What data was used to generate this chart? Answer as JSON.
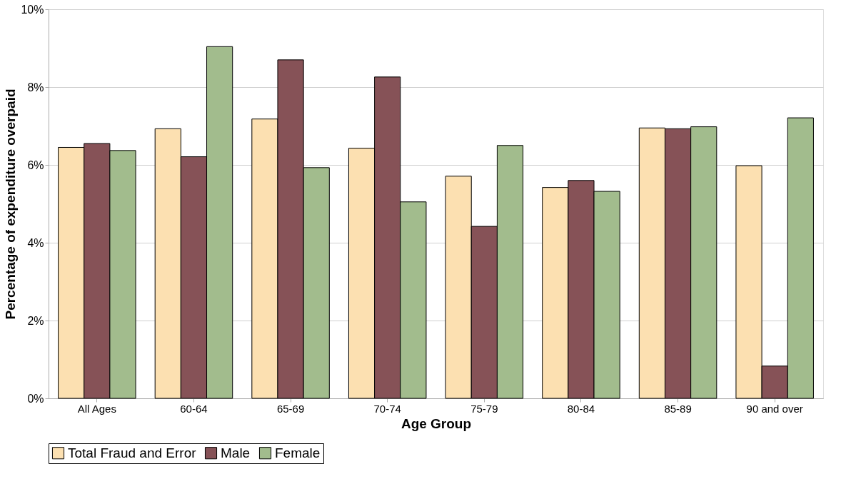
{
  "chart_data": {
    "type": "bar",
    "xlabel": "Age Group",
    "ylabel": "Percentage of expenditure overpaid",
    "categories": [
      "All Ages",
      "60-64",
      "65-69",
      "70-74",
      "75-79",
      "80-84",
      "85-89",
      "90 and over"
    ],
    "series": [
      {
        "name": "Total Fraud and Error",
        "color": "#fce0b1",
        "values": [
          6.45,
          6.93,
          7.18,
          6.43,
          5.71,
          5.42,
          6.95,
          5.98
        ]
      },
      {
        "name": "Male",
        "color": "#865257",
        "values": [
          6.55,
          6.21,
          8.7,
          8.26,
          4.42,
          5.6,
          6.93,
          0.83
        ]
      },
      {
        "name": "Female",
        "color": "#a2bc8d",
        "values": [
          6.37,
          9.04,
          5.93,
          5.05,
          6.5,
          5.32,
          6.98,
          7.21
        ]
      }
    ],
    "ylim": [
      0,
      10
    ],
    "yticks": [
      {
        "value": 0,
        "label": "0%"
      },
      {
        "value": 2,
        "label": "2%"
      },
      {
        "value": 4,
        "label": "4%"
      },
      {
        "value": 6,
        "label": "6%"
      },
      {
        "value": 8,
        "label": "8%"
      },
      {
        "value": 10,
        "label": "10%"
      }
    ],
    "grid": "y",
    "legend": "bottom"
  }
}
